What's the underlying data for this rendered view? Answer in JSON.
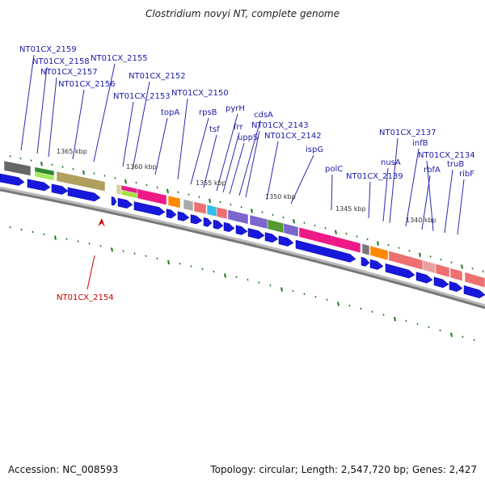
{
  "title": "Clostridium novyi NT, complete genome",
  "footer": {
    "accession": "Accession: NC_008593",
    "summary": "Topology: circular; Length: 2,547,720 bp; Genes: 2,427"
  },
  "colors": {
    "label_normal": "#1a1aa6",
    "label_highlight": "#cc0000",
    "cds_arrow": "#1818dd",
    "backbone": "#777777",
    "tick_green": "#1a7a1a"
  },
  "kbp_markers": [
    "1365 kbp",
    "1360 kbp",
    "1355 kbp",
    "1350 kbp",
    "1345 kbp",
    "1340 kbp"
  ],
  "gene_labels": [
    "NT01CX_2159",
    "NT01CX_2158",
    "NT01CX_2157",
    "NT01CX_2156",
    "NT01CX_2155",
    "NT01CX_2153",
    "NT01CX_2152",
    "topA",
    "NT01CX_2150",
    "rpsB",
    "tsf",
    "pyrH",
    "frr",
    "uppS",
    "cdsA",
    "NT01CX_2143",
    "NT01CX_2142",
    "ispG",
    "polC",
    "NT01CX_2139",
    "nusA",
    "NT01CX_2137",
    "infB",
    "rbfA",
    "NT01CX_2134",
    "truB",
    "ribF"
  ],
  "highlight_label": "NT01CX_2154"
}
